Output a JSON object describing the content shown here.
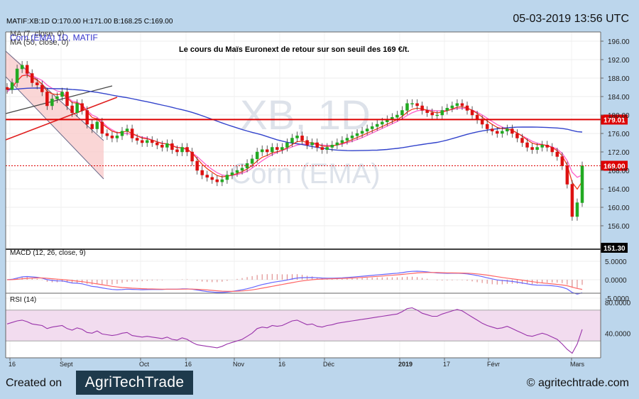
{
  "header": {
    "ohlc": "MATIF:XB:1D O:170.00 H:171.00 B:168.25 C:169.00",
    "datetime": "05-03-2019 13:56 UTC"
  },
  "chart_data": {
    "type": "candlestick",
    "symbol_label": "Corn (EMA) 1D, MATIF",
    "watermark": [
      "XB, 1D",
      "Corn (EMA)"
    ],
    "annotation": "Le cours du Maïs Euronext de retour sur son seuil des 169 €/t.",
    "legend": [
      "MA (7, close, 0)",
      "MA (50, close, 0)"
    ],
    "ylim": [
      151.3,
      198.5
    ],
    "y_ticks": [
      156,
      160,
      164,
      168,
      172,
      176,
      180,
      184,
      188,
      192,
      196
    ],
    "x_ticks": [
      "16",
      "Sept",
      "Oct",
      "16",
      "Nov",
      "16",
      "Déc",
      "2019",
      "17",
      "Févr",
      "Mars"
    ],
    "price_labels": [
      {
        "value": 179.01,
        "label": "179.01",
        "color": "#dd0000"
      },
      {
        "value": 169.0,
        "label": "169.00",
        "color": "#dd0000"
      },
      {
        "value": 151.3,
        "label": "151.30",
        "color": "#000000"
      }
    ],
    "horizontal_line": 179.01,
    "dotted_line": 169.0,
    "closes": [
      185.5,
      187,
      190,
      190.8,
      189,
      187,
      186.5,
      185,
      182,
      183.5,
      184,
      185,
      182,
      180.5,
      182.5,
      181,
      178,
      177,
      178.5,
      176,
      175.5,
      175,
      175.5,
      176.5,
      177,
      175,
      174.5,
      174,
      174.5,
      174,
      173.5,
      173,
      173.8,
      172.5,
      172,
      173,
      172,
      170,
      168,
      167,
      166.5,
      166,
      165.5,
      166,
      167,
      167.5,
      168,
      168.5,
      169.5,
      170.5,
      172,
      172.5,
      172,
      173,
      172.5,
      173,
      174,
      175,
      175.5,
      174.5,
      173.5,
      174,
      173,
      172.5,
      173,
      173.5,
      174,
      174.5,
      175,
      175.5,
      176,
      176.5,
      177,
      177.5,
      178,
      178.5,
      179,
      179.5,
      180,
      181,
      182.5,
      182.5,
      182,
      181,
      180.5,
      180,
      180,
      181,
      181.5,
      182,
      182.5,
      182,
      181,
      180,
      179,
      178,
      177,
      176.5,
      176,
      176.5,
      177,
      176,
      175,
      174,
      173,
      172.5,
      173,
      173.5,
      173,
      172,
      171,
      169,
      165,
      158,
      161,
      169
    ],
    "ma7": [
      185,
      186,
      187.5,
      188.5,
      188.8,
      188.5,
      188,
      187.5,
      186.5,
      185.8,
      185.2,
      185,
      184,
      183,
      182.8,
      182.2,
      181,
      180,
      179.5,
      178.5,
      177.5,
      176.8,
      176.2,
      176,
      176,
      175.8,
      175.5,
      175.2,
      175,
      174.6,
      174.2,
      173.9,
      173.7,
      173.4,
      173,
      172.8,
      172.5,
      171.8,
      171,
      170,
      169,
      168.2,
      167.5,
      167,
      166.8,
      166.9,
      167.1,
      167.4,
      167.8,
      168.5,
      169.3,
      170.1,
      170.8,
      171.4,
      171.9,
      172.3,
      172.7,
      173.1,
      173.5,
      173.7,
      173.7,
      173.7,
      173.6,
      173.5,
      173.4,
      173.4,
      173.5,
      173.7,
      174,
      174.3,
      174.7,
      175.1,
      175.6,
      176.1,
      176.6,
      177.1,
      177.6,
      178.1,
      178.6,
      179.2,
      179.9,
      180.5,
      180.9,
      181.1,
      181.1,
      181,
      180.9,
      180.9,
      181,
      181.2,
      181.4,
      181.5,
      181.4,
      181.1,
      180.6,
      180,
      179.3,
      178.6,
      177.9,
      177.4,
      177,
      176.6,
      176.1,
      175.5,
      174.9,
      174.3,
      173.9,
      173.6,
      173.4,
      173.1,
      172.6,
      171.7,
      170.1,
      167.6,
      166.5,
      167
    ]
  },
  "macd": {
    "label": "MACD (12, 26, close, 9)",
    "ylim": [
      -6.5,
      7
    ],
    "y_ticks": [
      5.0,
      0.0,
      -5.0
    ],
    "y_tick_labels": [
      "5.0000",
      "0.0000",
      "-5.0000"
    ]
  },
  "rsi": {
    "label": "RSI (14)",
    "ylim": [
      8,
      92
    ],
    "y_ticks": [
      80,
      40
    ],
    "y_tick_labels": [
      "80.0000",
      "40.0000"
    ],
    "band": [
      70,
      30
    ],
    "values": [
      52,
      54,
      56,
      57,
      55,
      52,
      51,
      50,
      46,
      48,
      49,
      50,
      46,
      44,
      47,
      45,
      41,
      40,
      43,
      39,
      38,
      37,
      38,
      40,
      41,
      37,
      36,
      35,
      36,
      35,
      34,
      33,
      35,
      32,
      31,
      34,
      32,
      28,
      25,
      24,
      23,
      22,
      21,
      23,
      26,
      28,
      30,
      32,
      36,
      40,
      46,
      48,
      47,
      50,
      49,
      50,
      53,
      56,
      57,
      54,
      51,
      52,
      49,
      48,
      50,
      51,
      53,
      54,
      55,
      56,
      57,
      58,
      59,
      60,
      61,
      62,
      63,
      64,
      65,
      68,
      72,
      73,
      70,
      66,
      64,
      62,
      62,
      65,
      67,
      69,
      71,
      69,
      65,
      61,
      57,
      53,
      50,
      48,
      46,
      47,
      49,
      46,
      43,
      40,
      37,
      36,
      38,
      40,
      38,
      35,
      32,
      26,
      19,
      14,
      26,
      45
    ]
  },
  "footer": {
    "created_on": "Created on",
    "logo": "AgriTechTrade",
    "url": "© agritechtrade.com"
  }
}
